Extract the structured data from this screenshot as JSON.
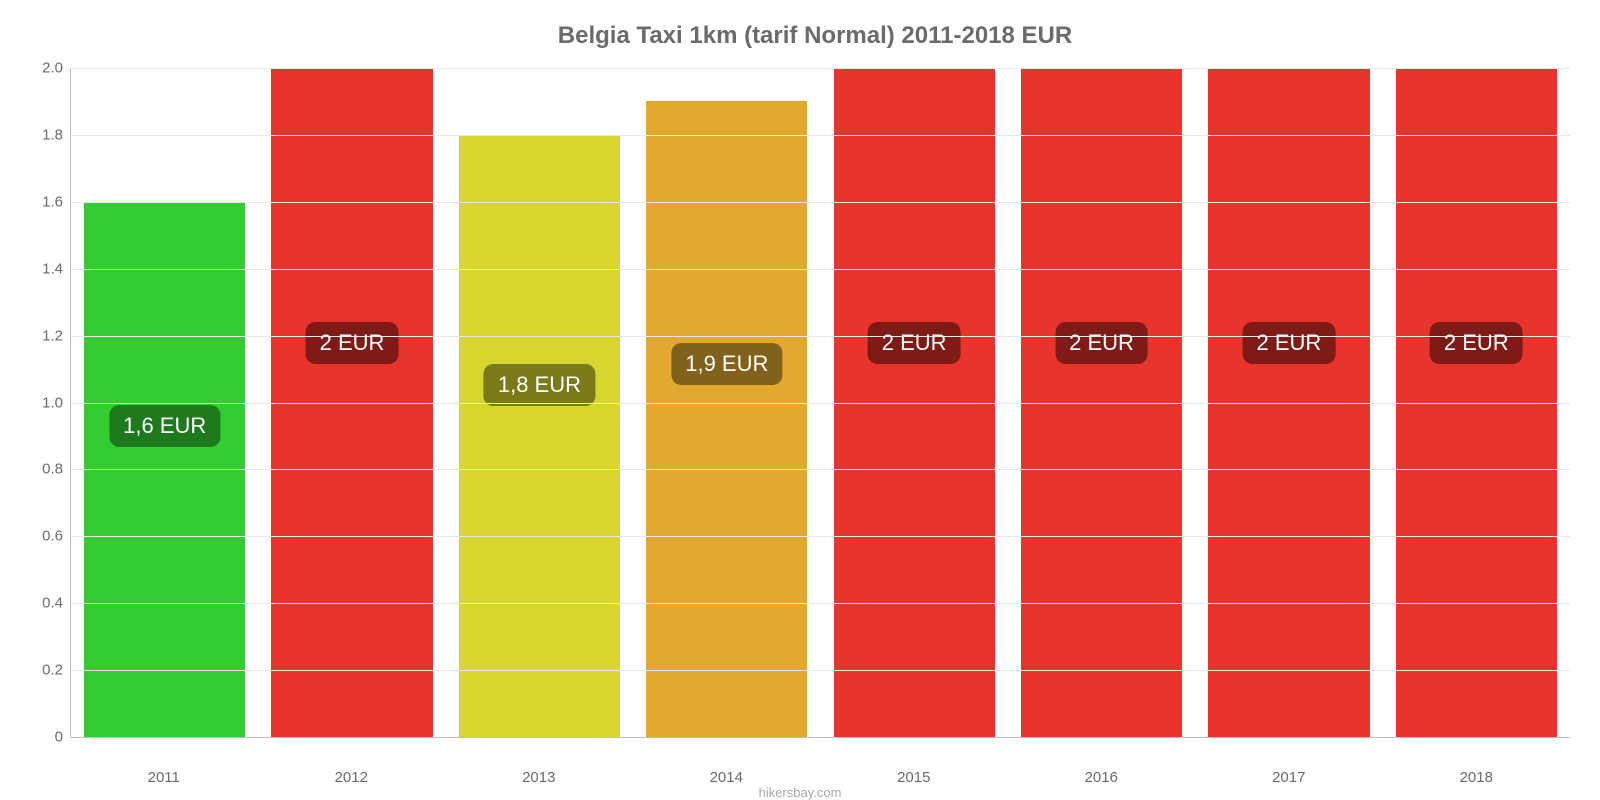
{
  "chart": {
    "type": "bar",
    "title": "Belgia Taxi 1km (tarif Normal) 2011-2018 EUR",
    "title_fontsize": 24,
    "title_color": "#6b6b6b",
    "background_color": "#ffffff",
    "grid_color": "#e8e8e8",
    "axis_color": "#c0c0c0",
    "tick_label_color": "#6b6b6b",
    "tick_label_fontsize": 15,
    "bar_label_fontsize": 22,
    "bar_label_text_color": "#ffffff",
    "bar_width": 0.86,
    "ylim": [
      0,
      2.0
    ],
    "yticks": [
      0,
      0.2,
      0.4,
      0.6,
      0.8,
      1.0,
      1.2,
      1.4,
      1.6,
      1.8,
      2.0
    ],
    "ytick_labels": [
      "0",
      "0.2",
      "0.4",
      "0.6",
      "0.8",
      "1.0",
      "1.2",
      "1.4",
      "1.6",
      "1.8",
      "2.0"
    ],
    "categories": [
      "2011",
      "2012",
      "2013",
      "2014",
      "2015",
      "2016",
      "2017",
      "2018"
    ],
    "values": [
      1.6,
      2.0,
      1.8,
      1.9,
      2.0,
      2.0,
      2.0,
      2.0
    ],
    "value_labels": [
      "1,6 EUR",
      "2 EUR",
      "1,8 EUR",
      "1,9 EUR",
      "2 EUR",
      "2 EUR",
      "2 EUR",
      "2 EUR"
    ],
    "bar_colors": [
      "#33cc33",
      "#e8342b",
      "#d6d62e",
      "#e3a92e",
      "#e8342b",
      "#e8342b",
      "#e8342b",
      "#e8342b"
    ],
    "badge_colors": [
      "#1d7a1d",
      "#7e1b16",
      "#7a7a1a",
      "#82611a",
      "#7e1b16",
      "#7e1b16",
      "#7e1b16",
      "#7e1b16"
    ]
  },
  "footer": {
    "text": "hikersbay.com",
    "color": "#a8a8a8",
    "fontsize": 13
  }
}
